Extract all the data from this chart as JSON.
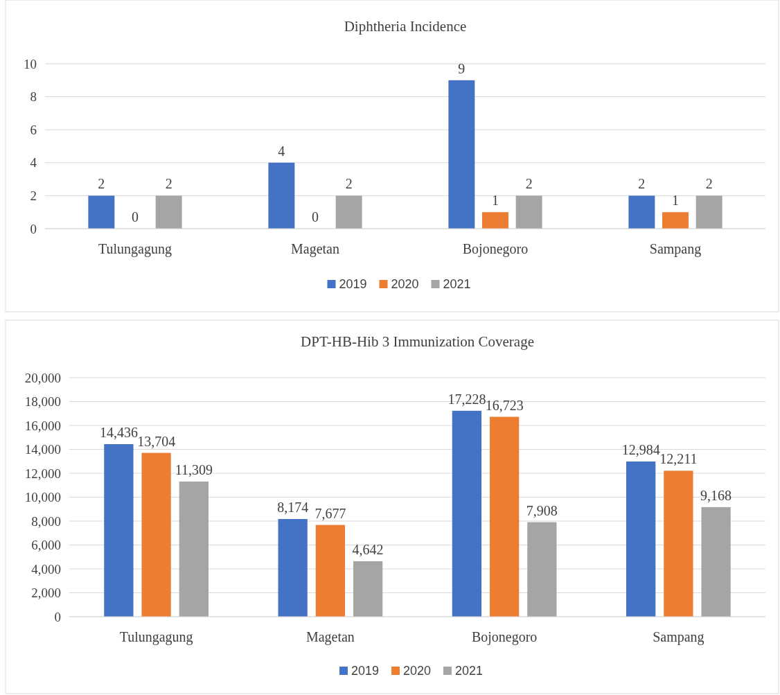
{
  "chart_data": [
    {
      "type": "bar",
      "title": "Diphtheria Incidence",
      "categories": [
        "Tulungagung",
        "Magetan",
        "Bojonegoro",
        "Sampang"
      ],
      "series": [
        {
          "name": "2019",
          "color": "#4472c4",
          "values": [
            2,
            4,
            9,
            2
          ]
        },
        {
          "name": "2020",
          "color": "#ed7d31",
          "values": [
            0,
            0,
            1,
            1
          ]
        },
        {
          "name": "2021",
          "color": "#a5a5a5",
          "values": [
            2,
            2,
            2,
            2
          ]
        }
      ],
      "ylim": [
        0,
        10
      ],
      "yticks": [
        0,
        2,
        4,
        6,
        8,
        10
      ],
      "grid": "y",
      "legend": "bottom",
      "data_labels": true
    },
    {
      "type": "bar",
      "title": "DPT-HB-Hib 3 Immunization Coverage",
      "categories": [
        "Tulungagung",
        "Magetan",
        "Bojonegoro",
        "Sampang"
      ],
      "series": [
        {
          "name": "2019",
          "color": "#4472c4",
          "values": [
            14436,
            8174,
            17228,
            12984
          ],
          "value_labels": [
            "14,436",
            "8,174",
            "17,228",
            "12,984"
          ]
        },
        {
          "name": "2020",
          "color": "#ed7d31",
          "values": [
            13704,
            7677,
            16723,
            12211
          ],
          "value_labels": [
            "13,704",
            "7,677",
            "16,723",
            "12,211"
          ]
        },
        {
          "name": "2021",
          "color": "#a5a5a5",
          "values": [
            11309,
            4642,
            7908,
            9168
          ],
          "value_labels": [
            "11,309",
            "4,642",
            "7,908",
            "9,168"
          ]
        }
      ],
      "ylim": [
        0,
        20000
      ],
      "yticks": [
        {
          "value": 0,
          "label": "0"
        },
        {
          "value": 2000,
          "label": "2,000"
        },
        {
          "value": 4000,
          "label": "4,000"
        },
        {
          "value": 6000,
          "label": "6,000"
        },
        {
          "value": 8000,
          "label": "8,000"
        },
        {
          "value": 10000,
          "label": "10,000"
        },
        {
          "value": 12000,
          "label": "12,000"
        },
        {
          "value": 14000,
          "label": "14,000"
        },
        {
          "value": 16000,
          "label": "16,000"
        },
        {
          "value": 18000,
          "label": "18,000"
        },
        {
          "value": 20000,
          "label": "20,000"
        }
      ],
      "grid": "y",
      "legend": "bottom"
    }
  ]
}
